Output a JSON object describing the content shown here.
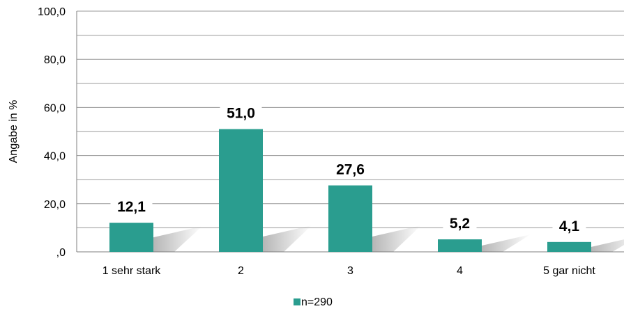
{
  "chart_data": {
    "type": "bar",
    "categories": [
      "1 sehr stark",
      "2",
      "3",
      "4",
      "5 gar nicht"
    ],
    "series": [
      {
        "name": "n=290",
        "values": [
          12.1,
          51.0,
          27.6,
          5.2,
          4.1
        ],
        "labels": [
          "12,1",
          "51,0",
          "27,6",
          "5,2",
          "4,1"
        ]
      }
    ],
    "title": "",
    "xlabel": "",
    "ylabel": "Angabe in %",
    "ylim": [
      0,
      100
    ],
    "yticks": [
      0,
      20,
      40,
      60,
      80,
      100
    ],
    "ytick_labels": [
      ",0",
      "20,0",
      "40,0",
      "60,0",
      "80,0",
      "100,0"
    ],
    "grid": true,
    "legend_position": "bottom",
    "colors": {
      "bar": "#2a9d8f",
      "grid": "#9a9a9a",
      "axis": "#7f7f7f"
    }
  }
}
